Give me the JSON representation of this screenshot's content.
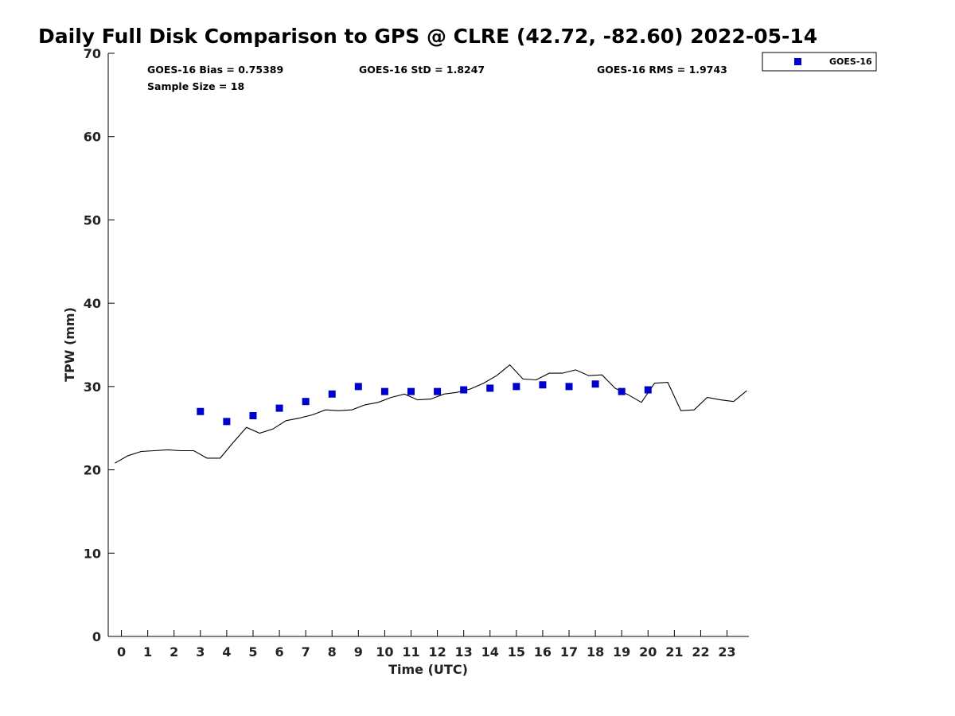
{
  "chart_data": {
    "type": "scatter",
    "title": "Daily Full Disk Comparison to GPS @ CLRE (42.72, -82.60) 2022-05-14",
    "xlabel": "Time (UTC)",
    "ylabel": "TPW (mm)",
    "xlim": [
      -0.5,
      23.83
    ],
    "ylim": [
      0,
      70
    ],
    "x_ticks": [
      0,
      1,
      2,
      3,
      4,
      5,
      6,
      7,
      8,
      9,
      10,
      11,
      12,
      13,
      14,
      15,
      16,
      17,
      18,
      19,
      20,
      21,
      22,
      23
    ],
    "y_ticks": [
      0,
      10,
      20,
      30,
      40,
      50,
      60,
      70
    ],
    "grid": false,
    "legend_position": "outside-top-right",
    "stats": {
      "bias": "GOES-16 Bias = 0.75389",
      "std": "GOES-16 StD = 1.8247",
      "rms": "GOES-16 RMS = 1.9743",
      "sample_size": "Sample Size = 18"
    },
    "series": [
      {
        "name": "GOES-16",
        "marker": "square",
        "color": "#0000cc",
        "x": [
          3,
          4,
          5,
          6,
          7,
          8,
          9,
          10,
          11,
          12,
          13,
          14,
          15,
          16,
          17,
          18,
          19,
          20
        ],
        "y": [
          27.0,
          25.8,
          26.5,
          27.4,
          28.2,
          29.1,
          30.0,
          29.4,
          29.4,
          29.4,
          29.6,
          29.8,
          30.0,
          30.2,
          30.0,
          30.3,
          29.4,
          29.6
        ]
      },
      {
        "marker": "line",
        "color": "#000000",
        "x": [
          -0.25,
          0.25,
          0.75,
          1.25,
          1.75,
          2.25,
          2.75,
          3.25,
          3.75,
          4.25,
          4.75,
          5.25,
          5.75,
          6.25,
          6.75,
          7.25,
          7.75,
          8.25,
          8.75,
          9.25,
          9.75,
          10.25,
          10.75,
          11.25,
          11.75,
          12.25,
          12.75,
          13.25,
          13.75,
          14.25,
          14.75,
          15.25,
          15.75,
          16.25,
          16.75,
          17.25,
          17.75,
          18.25,
          18.75,
          19.25,
          19.75,
          20.25,
          20.75,
          21.25,
          21.75,
          22.25,
          22.75,
          23.25,
          23.75
        ],
        "y": [
          20.8,
          21.7,
          22.2,
          22.3,
          22.4,
          22.3,
          22.3,
          21.4,
          21.4,
          23.3,
          25.1,
          24.4,
          24.9,
          25.9,
          26.2,
          26.6,
          27.2,
          27.1,
          27.2,
          27.8,
          28.1,
          28.7,
          29.1,
          28.4,
          28.5,
          29.1,
          29.3,
          29.7,
          30.4,
          31.3,
          32.6,
          30.9,
          30.8,
          31.6,
          31.6,
          32.0,
          31.3,
          31.4,
          29.8,
          29.0,
          28.1,
          30.4,
          30.5,
          27.1,
          27.2,
          28.7,
          28.4,
          28.2,
          29.5
        ]
      }
    ]
  }
}
